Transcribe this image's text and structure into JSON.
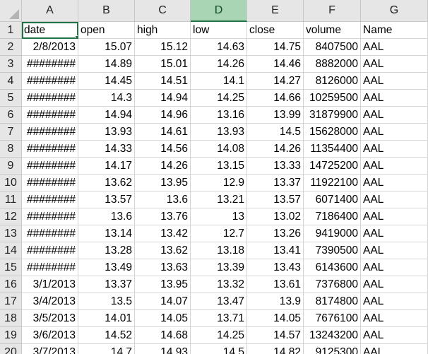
{
  "columns": [
    "A",
    "B",
    "C",
    "D",
    "E",
    "F",
    "G"
  ],
  "selected_column": "D",
  "row_numbers": [
    "1",
    "2",
    "3",
    "4",
    "5",
    "6",
    "7",
    "8",
    "9",
    "10",
    "11",
    "12",
    "13",
    "14",
    "15",
    "16",
    "17",
    "18",
    "19",
    "20"
  ],
  "rows": [
    [
      "date",
      "open",
      "high",
      "low",
      "close",
      "volume",
      "Name"
    ],
    [
      "2/8/2013",
      "15.07",
      "15.12",
      "14.63",
      "14.75",
      "8407500",
      "AAL"
    ],
    [
      "########",
      "14.89",
      "15.01",
      "14.26",
      "14.46",
      "8882000",
      "AAL"
    ],
    [
      "########",
      "14.45",
      "14.51",
      "14.1",
      "14.27",
      "8126000",
      "AAL"
    ],
    [
      "########",
      "14.3",
      "14.94",
      "14.25",
      "14.66",
      "10259500",
      "AAL"
    ],
    [
      "########",
      "14.94",
      "14.96",
      "13.16",
      "13.99",
      "31879900",
      "AAL"
    ],
    [
      "########",
      "13.93",
      "14.61",
      "13.93",
      "14.5",
      "15628000",
      "AAL"
    ],
    [
      "########",
      "14.33",
      "14.56",
      "14.08",
      "14.26",
      "11354400",
      "AAL"
    ],
    [
      "########",
      "14.17",
      "14.26",
      "13.15",
      "13.33",
      "14725200",
      "AAL"
    ],
    [
      "########",
      "13.62",
      "13.95",
      "12.9",
      "13.37",
      "11922100",
      "AAL"
    ],
    [
      "########",
      "13.57",
      "13.6",
      "13.21",
      "13.57",
      "6071400",
      "AAL"
    ],
    [
      "########",
      "13.6",
      "13.76",
      "13",
      "13.02",
      "7186400",
      "AAL"
    ],
    [
      "########",
      "13.14",
      "13.42",
      "12.7",
      "13.26",
      "9419000",
      "AAL"
    ],
    [
      "########",
      "13.28",
      "13.62",
      "13.18",
      "13.41",
      "7390500",
      "AAL"
    ],
    [
      "########",
      "13.49",
      "13.63",
      "13.39",
      "13.43",
      "6143600",
      "AAL"
    ],
    [
      "3/1/2013",
      "13.37",
      "13.95",
      "13.32",
      "13.61",
      "7376800",
      "AAL"
    ],
    [
      "3/4/2013",
      "13.5",
      "14.07",
      "13.47",
      "13.9",
      "8174800",
      "AAL"
    ],
    [
      "3/5/2013",
      "14.01",
      "14.05",
      "13.71",
      "14.05",
      "7676100",
      "AAL"
    ],
    [
      "3/6/2013",
      "14.52",
      "14.68",
      "14.25",
      "14.57",
      "13243200",
      "AAL"
    ],
    [
      "3/7/2013",
      "14.7",
      "14.93",
      "14.5",
      "14.82",
      "9125300",
      "AAL"
    ]
  ],
  "colors": {
    "header_bg": "#e6e6e6",
    "selected_header_bg": "#a9d5b4",
    "accent": "#217346",
    "gridline": "#d4d4d4"
  }
}
